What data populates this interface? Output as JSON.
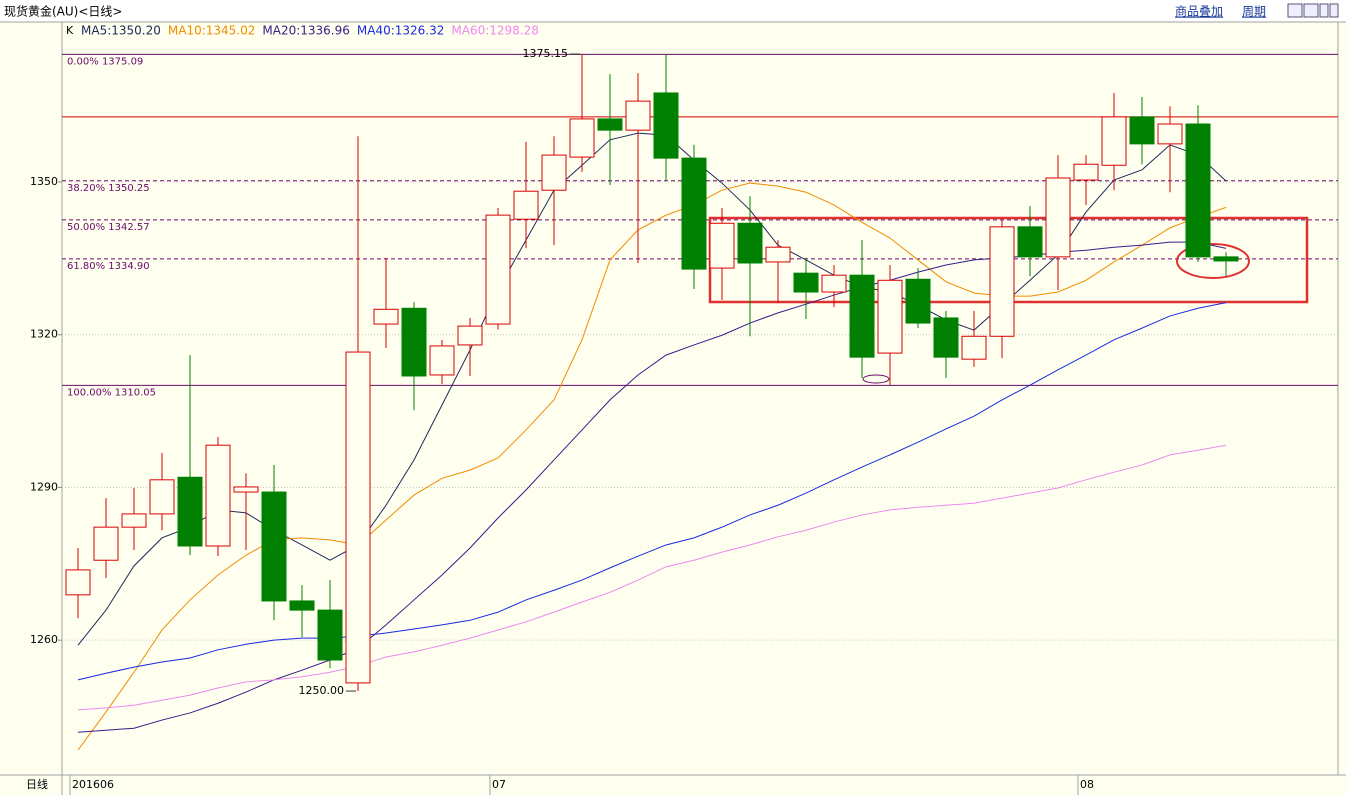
{
  "header": {
    "title": "现货黄金(AU)<日线>",
    "links": [
      "商品叠加",
      "周期"
    ]
  },
  "chart_data": {
    "type": "candlestick",
    "legend_prefix": "K",
    "period_label": "日线",
    "categories": [
      "201606",
      null,
      null,
      null,
      null,
      null,
      null,
      null,
      null,
      null,
      null,
      null,
      null,
      null,
      null,
      "07",
      null,
      null,
      null,
      null,
      null,
      null,
      null,
      null,
      null,
      null,
      null,
      null,
      null,
      null,
      null,
      null,
      null,
      null,
      null,
      null,
      "08",
      null,
      null,
      null,
      null,
      null
    ],
    "candles": {
      "up_color": "#d80000",
      "down_color": "#008000",
      "open": [
        1268.9,
        1275.7,
        1282.2,
        1284.8,
        1292.0,
        1278.5,
        1289.1,
        1289.1,
        1267.7,
        1265.9,
        1251.6,
        1322.1,
        1325.2,
        1312.1,
        1318.0,
        1322.1,
        1342.7,
        1348.4,
        1354.9,
        1362.4,
        1360.2,
        1367.5,
        1354.7,
        1333.1,
        1341.9,
        1334.3,
        1332.1,
        1328.4,
        1331.7,
        1316.4,
        1330.9,
        1323.3,
        1315.2,
        1319.7,
        1341.2,
        1335.3,
        1350.4,
        1353.3,
        1362.8,
        1357.5,
        1361.4,
        1335.3
      ],
      "high": [
        1278.1,
        1287.9,
        1289.9,
        1296.8,
        1316.0,
        1299.9,
        1292.8,
        1294.4,
        1270.8,
        1271.8,
        1359.0,
        1335.1,
        1326.4,
        1319.0,
        1323.3,
        1344.9,
        1357.9,
        1359.0,
        1375.15,
        1371.2,
        1371.4,
        1375.0,
        1357.3,
        1344.9,
        1347.2,
        1338.6,
        1335.1,
        1333.7,
        1338.6,
        1333.7,
        1333.1,
        1324.7,
        1324.7,
        1342.5,
        1345.3,
        1355.3,
        1355.3,
        1367.5,
        1366.7,
        1364.9,
        1365.1,
        1336.2
      ],
      "low": [
        1264.3,
        1272.2,
        1277.7,
        1281.6,
        1276.7,
        1276.5,
        1277.7,
        1263.9,
        1260.6,
        1254.5,
        1250.0,
        1317.4,
        1305.2,
        1310.3,
        1311.9,
        1321.0,
        1337.0,
        1337.6,
        1352.0,
        1349.4,
        1334.1,
        1350.2,
        1329.0,
        1326.8,
        1319.7,
        1326.2,
        1323.1,
        1325.4,
        1311.5,
        1310.05,
        1321.3,
        1311.5,
        1313.7,
        1315.4,
        1331.5,
        1328.8,
        1345.5,
        1348.4,
        1353.5,
        1348.0,
        1334.3,
        1331.5
      ],
      "close": [
        1273.8,
        1282.2,
        1284.8,
        1291.5,
        1278.5,
        1298.3,
        1290.1,
        1267.7,
        1265.9,
        1256.1,
        1316.6,
        1325.0,
        1311.9,
        1317.8,
        1321.7,
        1343.5,
        1348.2,
        1355.3,
        1362.4,
        1360.2,
        1365.9,
        1354.7,
        1332.9,
        1341.9,
        1334.1,
        1337.2,
        1328.4,
        1331.7,
        1315.6,
        1330.7,
        1322.3,
        1315.6,
        1319.7,
        1341.2,
        1335.3,
        1350.8,
        1353.5,
        1362.8,
        1357.5,
        1361.4,
        1335.3,
        1334.5
      ]
    },
    "series": [
      {
        "name": "MA5",
        "label": "MA5:1350.20",
        "color": "#1c2a5c",
        "values": [
          1259.0,
          1265.9,
          1274.6,
          1280.1,
          1282.2,
          1285.6,
          1285.0,
          1281.6,
          1278.7,
          1275.7,
          1278.7,
          1286.5,
          1295.4,
          1306.2,
          1317.0,
          1328.8,
          1338.6,
          1348.4,
          1353.3,
          1358.3,
          1359.6,
          1359.2,
          1354.3,
          1349.8,
          1344.5,
          1337.6,
          1334.7,
          1331.7,
          1329.4,
          1328.4,
          1325.8,
          1322.9,
          1320.9,
          1325.8,
          1330.7,
          1335.7,
          1344.1,
          1350.4,
          1352.4,
          1357.3,
          1355.3,
          1350.2
        ]
      },
      {
        "name": "MA10",
        "label": "MA10:1345.02",
        "color": "#f08c00",
        "values": [
          1238.4,
          1245.9,
          1253.7,
          1262.0,
          1267.9,
          1272.8,
          1276.7,
          1279.7,
          1280.1,
          1279.7,
          1278.7,
          1283.6,
          1288.5,
          1291.8,
          1293.4,
          1295.8,
          1301.3,
          1307.2,
          1319.0,
          1334.7,
          1340.6,
          1343.5,
          1345.5,
          1348.4,
          1349.8,
          1349.2,
          1348.0,
          1345.5,
          1342.1,
          1339.0,
          1334.7,
          1330.4,
          1328.2,
          1327.6,
          1327.6,
          1328.4,
          1330.7,
          1334.3,
          1337.6,
          1341.0,
          1343.1,
          1345.02
        ]
      },
      {
        "name": "MA20",
        "label": "MA20:1336.96",
        "color": "#3a1a8a",
        "values": [
          1241.9,
          1242.3,
          1242.7,
          1244.3,
          1245.7,
          1247.6,
          1249.8,
          1252.2,
          1254.1,
          1256.1,
          1258.4,
          1263.0,
          1267.9,
          1272.8,
          1278.1,
          1284.0,
          1289.5,
          1295.4,
          1301.3,
          1307.2,
          1312.1,
          1316.0,
          1318.0,
          1319.9,
          1322.3,
          1324.3,
          1326.0,
          1327.8,
          1329.4,
          1330.7,
          1332.3,
          1333.7,
          1334.7,
          1335.1,
          1335.5,
          1336.2,
          1336.6,
          1337.2,
          1337.6,
          1338.2,
          1338.2,
          1336.96
        ]
      },
      {
        "name": "MA40",
        "label": "MA40:1326.32",
        "color": "#1a2ae0",
        "values": [
          1252.2,
          1253.5,
          1254.7,
          1255.7,
          1256.5,
          1258.1,
          1259.2,
          1260.0,
          1260.4,
          1260.4,
          1260.8,
          1261.4,
          1262.2,
          1263.0,
          1263.9,
          1265.5,
          1267.9,
          1269.8,
          1271.8,
          1274.2,
          1276.5,
          1278.7,
          1280.1,
          1282.2,
          1284.6,
          1286.5,
          1288.9,
          1291.5,
          1294.0,
          1296.4,
          1298.9,
          1301.5,
          1304.0,
          1307.2,
          1310.1,
          1313.1,
          1316.0,
          1319.0,
          1321.3,
          1323.7,
          1325.2,
          1326.32
        ]
      },
      {
        "name": "MA60",
        "label": "MA60:1298.28",
        "color": "#ee88ee",
        "values": [
          1246.3,
          1246.7,
          1247.2,
          1248.2,
          1249.2,
          1250.6,
          1251.8,
          1252.2,
          1252.8,
          1253.7,
          1254.9,
          1256.7,
          1257.7,
          1259.0,
          1260.4,
          1262.0,
          1263.6,
          1265.5,
          1267.5,
          1269.4,
          1271.8,
          1274.4,
          1275.7,
          1277.3,
          1278.7,
          1280.3,
          1281.6,
          1283.2,
          1284.6,
          1285.6,
          1286.1,
          1286.5,
          1286.9,
          1287.9,
          1288.9,
          1289.9,
          1291.5,
          1293.0,
          1294.4,
          1296.4,
          1297.3,
          1298.28
        ]
      }
    ],
    "fib_levels": [
      {
        "value": 1375.09,
        "label": "0.00% 1375.09",
        "dashed": false
      },
      {
        "value": 1350.25,
        "label": "38.20% 1350.25",
        "dashed": true
      },
      {
        "value": 1342.57,
        "label": "50.00% 1342.57",
        "dashed": true
      },
      {
        "value": 1334.9,
        "label": "61.80% 1334.90",
        "dashed": true
      },
      {
        "value": 1310.05,
        "label": "100.00% 1310.05",
        "dashed": false
      }
    ],
    "fib_color": "#6a0a6a",
    "resistance": {
      "value": 1362.8,
      "color": "#d80000"
    },
    "max_label": "1375.15",
    "min_label": "1250.00",
    "ylim": [
      1233.9,
      1378.3
    ],
    "yticks": [
      1260,
      1290,
      1320,
      1350
    ],
    "grid": true
  }
}
